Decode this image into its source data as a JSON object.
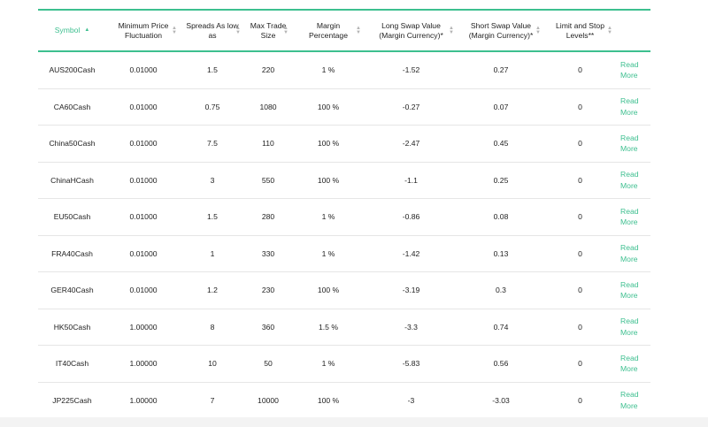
{
  "columns": {
    "symbol": "Symbol",
    "min_price": "Minimum Price Fluctuation",
    "spreads": "Spreads As low as",
    "max_trade": "Max Trade Size",
    "margin": "Margin Percentage",
    "long_swap": "Long Swap Value (Margin Currency)*",
    "short_swap": "Short Swap Value (Margin Currency)*",
    "limit_stop": "Limit and Stop Levels**"
  },
  "colors": {
    "accent": "#3dbf8f"
  },
  "icons": {
    "sort_active": "sort-ascending-icon",
    "sort_inactive": "sort-both-icon"
  },
  "read_more": {
    "line1": "Read",
    "line2": "More"
  },
  "rows": [
    {
      "symbol": "AUS200Cash",
      "min_price": "0.01000",
      "spreads": "1.5",
      "max_trade": "220",
      "margin": "1 %",
      "long_swap": "-1.52",
      "short_swap": "0.27",
      "limit_stop": "0"
    },
    {
      "symbol": "CA60Cash",
      "min_price": "0.01000",
      "spreads": "0.75",
      "max_trade": "1080",
      "margin": "100 %",
      "long_swap": "-0.27",
      "short_swap": "0.07",
      "limit_stop": "0"
    },
    {
      "symbol": "China50Cash",
      "min_price": "0.01000",
      "spreads": "7.5",
      "max_trade": "110",
      "margin": "100 %",
      "long_swap": "-2.47",
      "short_swap": "0.45",
      "limit_stop": "0"
    },
    {
      "symbol": "ChinaHCash",
      "min_price": "0.01000",
      "spreads": "3",
      "max_trade": "550",
      "margin": "100 %",
      "long_swap": "-1.1",
      "short_swap": "0.25",
      "limit_stop": "0"
    },
    {
      "symbol": "EU50Cash",
      "min_price": "0.01000",
      "spreads": "1.5",
      "max_trade": "280",
      "margin": "1 %",
      "long_swap": "-0.86",
      "short_swap": "0.08",
      "limit_stop": "0"
    },
    {
      "symbol": "FRA40Cash",
      "min_price": "0.01000",
      "spreads": "1",
      "max_trade": "330",
      "margin": "1 %",
      "long_swap": "-1.42",
      "short_swap": "0.13",
      "limit_stop": "0"
    },
    {
      "symbol": "GER40Cash",
      "min_price": "0.01000",
      "spreads": "1.2",
      "max_trade": "230",
      "margin": "100 %",
      "long_swap": "-3.19",
      "short_swap": "0.3",
      "limit_stop": "0"
    },
    {
      "symbol": "HK50Cash",
      "min_price": "1.00000",
      "spreads": "8",
      "max_trade": "360",
      "margin": "1.5 %",
      "long_swap": "-3.3",
      "short_swap": "0.74",
      "limit_stop": "0"
    },
    {
      "symbol": "IT40Cash",
      "min_price": "1.00000",
      "spreads": "10",
      "max_trade": "50",
      "margin": "1 %",
      "long_swap": "-5.83",
      "short_swap": "0.56",
      "limit_stop": "0"
    },
    {
      "symbol": "JP225Cash",
      "min_price": "1.00000",
      "spreads": "7",
      "max_trade": "10000",
      "margin": "100 %",
      "long_swap": "-3",
      "short_swap": "-3.03",
      "limit_stop": "0"
    }
  ]
}
